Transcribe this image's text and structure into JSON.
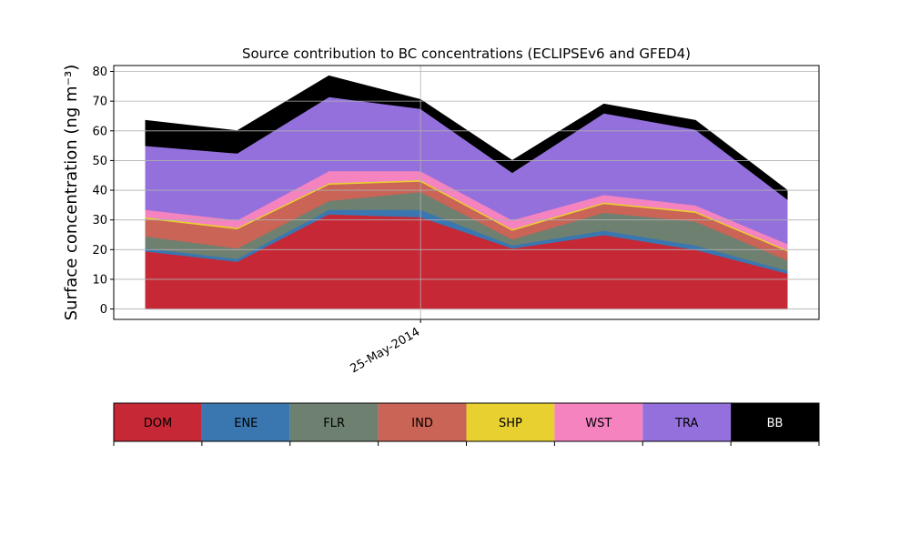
{
  "chart_data": {
    "type": "area",
    "stacked": true,
    "title": "Source contribution to BC concentrations (ECLIPSEv6 and GFED4)",
    "ylabel": "Surface concentration (ng m⁻³)",
    "xlabel": "",
    "x_points": 8,
    "x_tick_labels": [
      "25-May-2014"
    ],
    "x_tick_index": 3,
    "ylim": [
      -3.5,
      82
    ],
    "yticks": [
      0,
      10,
      20,
      30,
      40,
      50,
      60,
      70,
      80
    ],
    "grid": true,
    "legend_placement": "bottom",
    "series": [
      {
        "name": "DOM",
        "color": "#c62836",
        "values": [
          19.5,
          16,
          32,
          31,
          20.5,
          25,
          20,
          12
        ]
      },
      {
        "name": "ENE",
        "color": "#3a77b0",
        "values": [
          1,
          1,
          1.5,
          2.5,
          1,
          1.5,
          1.5,
          1
        ]
      },
      {
        "name": "FLR",
        "color": "#6e8070",
        "values": [
          4,
          3.5,
          3,
          6,
          2,
          6,
          8,
          3.5
        ]
      },
      {
        "name": "IND",
        "color": "#c96456",
        "values": [
          6,
          6.5,
          5.5,
          3.5,
          3,
          3,
          3,
          3
        ]
      },
      {
        "name": "SHP",
        "color": "#e8d030",
        "values": [
          0.5,
          0.5,
          0.5,
          0.5,
          0.5,
          0.5,
          0.5,
          0.5
        ]
      },
      {
        "name": "WST",
        "color": "#f483c0",
        "values": [
          2.5,
          2.5,
          4,
          3,
          3,
          2.5,
          2,
          2
        ]
      },
      {
        "name": "TRA",
        "color": "#9470dc",
        "values": [
          21.5,
          22.5,
          25,
          21,
          16,
          27.5,
          25.5,
          15
        ]
      },
      {
        "name": "BB",
        "color": "#000000",
        "values": [
          8.5,
          7.5,
          7,
          3,
          4,
          3,
          3,
          3
        ]
      }
    ]
  }
}
